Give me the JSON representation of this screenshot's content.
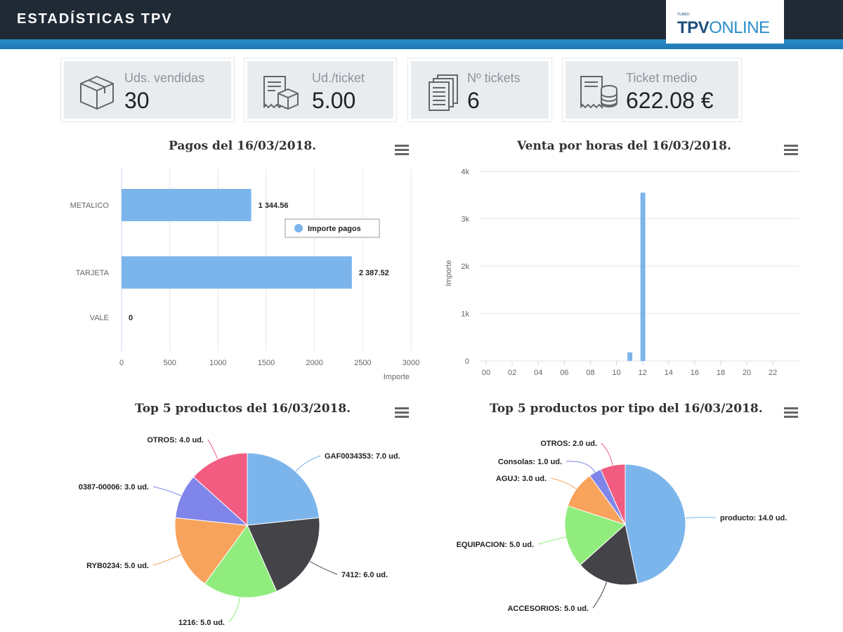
{
  "header": {
    "title": "ESTADÍSTICAS TPV",
    "logo_small": "TURBO",
    "logo_bold": "TPV",
    "logo_light": "ONLINE"
  },
  "kpis": [
    {
      "label": "Uds. vendidas",
      "value": "30",
      "icon": "box-icon"
    },
    {
      "label": "Ud./ticket",
      "value": "5.00",
      "icon": "receipt-box-icon"
    },
    {
      "label": "Nº tickets",
      "value": "6",
      "icon": "tickets-stack-icon"
    },
    {
      "label": "Ticket medio",
      "value": "622.08 €",
      "icon": "receipt-coins-icon"
    }
  ],
  "colors": {
    "bar": "#7cb5ec",
    "header": "#1f2a35",
    "stripe": "#2a8bc8",
    "pie": [
      "#7cb5ec",
      "#434348",
      "#90ed7d",
      "#f7a35c",
      "#8085e9",
      "#f15c80"
    ]
  },
  "chart_data": [
    {
      "type": "bar",
      "title": "Pagos del 16/03/2018.",
      "categories": [
        "METALICO",
        "TARJETA",
        "VALE"
      ],
      "series": [
        {
          "name": "Importe pagos",
          "values": [
            1344.56,
            2387.52,
            0
          ]
        }
      ],
      "data_labels": [
        "1 344.56",
        "2 387.52",
        "0"
      ],
      "xlabel": "Importe",
      "xticks": [
        "0",
        "500",
        "1000",
        "1500",
        "2000",
        "2500",
        "3000"
      ],
      "xlim": [
        0,
        3000
      ],
      "legend": "inside-right",
      "grid": true
    },
    {
      "type": "bar",
      "title": "Venta por horas del 16/03/2018.",
      "x": [
        11,
        12
      ],
      "values": [
        180,
        3550
      ],
      "ylabel": "Importe",
      "xticks": [
        "00",
        "02",
        "04",
        "06",
        "08",
        "10",
        "12",
        "14",
        "16",
        "18",
        "20",
        "22"
      ],
      "yticks": [
        "0",
        "1k",
        "2k",
        "3k",
        "4k"
      ],
      "ylim": [
        0,
        4000
      ],
      "grid": true
    },
    {
      "type": "pie",
      "title": "Top 5 productos del 16/03/2018.",
      "labels": [
        "GAF0034353: 7.0 ud.",
        "7412: 6.0 ud.",
        "1216: 5.0 ud.",
        "RYB0234: 5.0 ud.",
        "0387-00006: 3.0 ud.",
        "OTROS: 4.0 ud."
      ],
      "values": [
        7,
        6,
        5,
        5,
        3,
        4
      ]
    },
    {
      "type": "pie",
      "title": "Top 5 productos por tipo del 16/03/2018.",
      "labels": [
        "producto: 14.0 ud.",
        "ACCESORIOS: 5.0 ud.",
        "EQUIPACION: 5.0 ud.",
        "AGUJ: 3.0 ud.",
        "Consolas: 1.0 ud.",
        "OTROS: 2.0 ud."
      ],
      "values": [
        14,
        5,
        5,
        3,
        1,
        2
      ]
    }
  ]
}
